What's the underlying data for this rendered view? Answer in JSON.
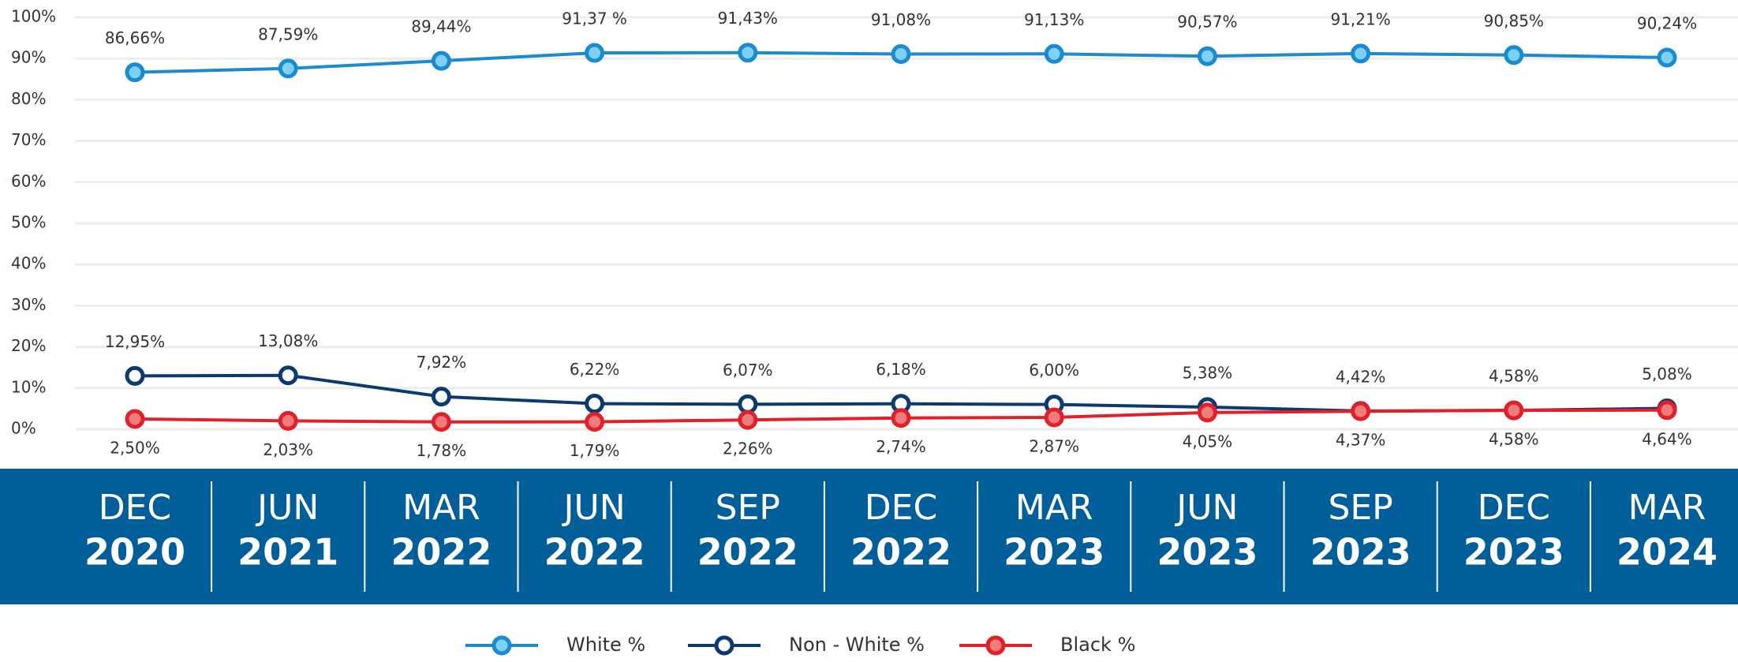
{
  "chart_data": {
    "type": "line",
    "categories": [
      [
        "DEC",
        "2020"
      ],
      [
        "JUN",
        "2021"
      ],
      [
        "MAR",
        "2022"
      ],
      [
        "JUN",
        "2022"
      ],
      [
        "SEP",
        "2022"
      ],
      [
        "DEC",
        "2022"
      ],
      [
        "MAR",
        "2023"
      ],
      [
        "JUN",
        "2023"
      ],
      [
        "SEP",
        "2023"
      ],
      [
        "DEC",
        "2023"
      ],
      [
        "MAR",
        "2024"
      ]
    ],
    "ylim": [
      0,
      100
    ],
    "yticks": [
      {
        "value": 0,
        "label": "0%"
      },
      {
        "value": 10,
        "label": "10%"
      },
      {
        "value": 20,
        "label": "20%"
      },
      {
        "value": 30,
        "label": "30%"
      },
      {
        "value": 40,
        "label": "40%"
      },
      {
        "value": 50,
        "label": "50%"
      },
      {
        "value": 60,
        "label": "60%"
      },
      {
        "value": 70,
        "label": "70%"
      },
      {
        "value": 80,
        "label": "80%"
      },
      {
        "value": 90,
        "label": "90%"
      },
      {
        "value": 100,
        "label": "100%"
      }
    ],
    "grid": true,
    "series": [
      {
        "name": "White %",
        "color": "#1a8bcf",
        "marker_fill": "#7fd0f5",
        "label_position": "above",
        "values": [
          86.66,
          87.59,
          89.44,
          91.37,
          91.43,
          91.08,
          91.13,
          90.57,
          91.21,
          90.85,
          90.24
        ],
        "value_labels": [
          "86,66%",
          "87,59%",
          "89,44%",
          "91,37 %",
          "91,43%",
          "91,08%",
          "91,13%",
          "90,57%",
          "91,21%",
          "90,85%",
          "90,24%"
        ]
      },
      {
        "name": "Non - White %",
        "color": "#0c3a6e",
        "marker_fill": "#ffffff",
        "label_position": "above",
        "values": [
          12.95,
          13.08,
          7.92,
          6.22,
          6.07,
          6.18,
          6.0,
          5.38,
          4.42,
          4.58,
          5.08
        ],
        "value_labels": [
          "12,95%",
          "13,08%",
          "7,92%",
          "6,22%",
          "6,07%",
          "6,18%",
          "6,00%",
          "5,38%",
          "4,42%",
          "4,58%",
          "5,08%"
        ]
      },
      {
        "name": "Black %",
        "color": "#e0202a",
        "marker_fill": "#f27c7c",
        "label_position": "below",
        "values": [
          2.5,
          2.03,
          1.78,
          1.79,
          2.26,
          2.74,
          2.87,
          4.05,
          4.37,
          4.58,
          4.64
        ],
        "value_labels": [
          "2,50%",
          "2,03%",
          "1,78%",
          "1,79%",
          "2,26%",
          "2,74%",
          "2,87%",
          "4,05%",
          "4,37%",
          "4,58%",
          "4,64%"
        ]
      }
    ],
    "legend": "bottom",
    "band_color": "#005f99"
  }
}
